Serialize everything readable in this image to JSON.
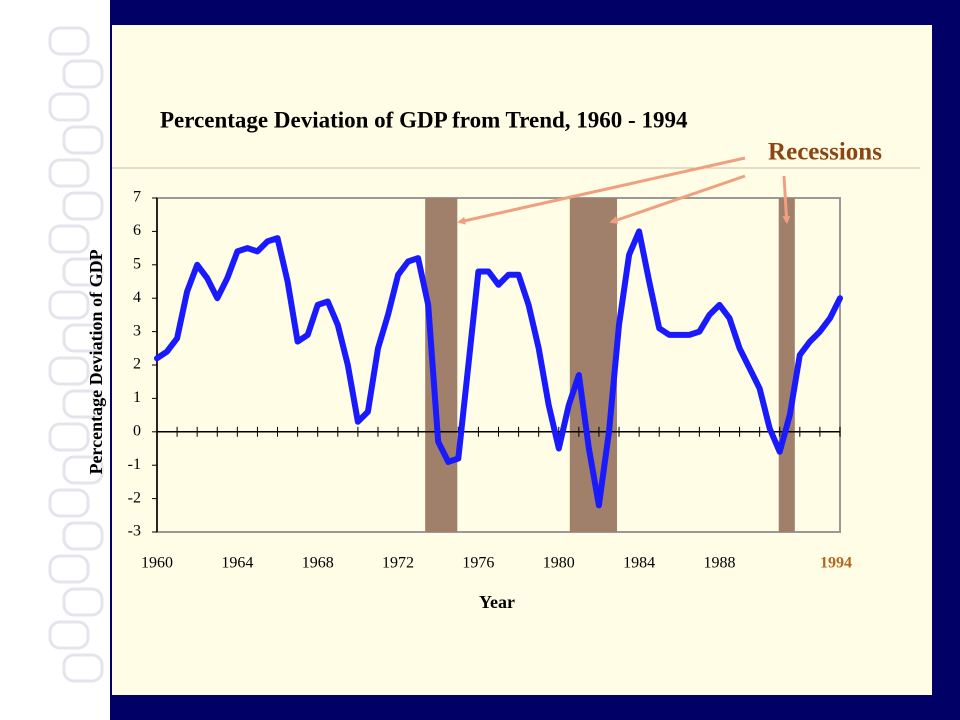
{
  "chart_data": {
    "type": "line",
    "title": "Percentage Deviation of GDP from Trend, 1960 - 1994",
    "x_label": "Year",
    "y_label": "Percentage Deviation of GDP",
    "annotation": "Recessions",
    "xlim": [
      1960,
      1994
    ],
    "ylim": [
      -3,
      7
    ],
    "xticks": [
      1960,
      1964,
      1968,
      1972,
      1976,
      1980,
      1984,
      1988,
      1994
    ],
    "yticks": [
      7,
      6,
      5,
      4,
      3,
      2,
      1,
      0,
      -1,
      -2,
      -3
    ],
    "emphasis_tick_color": "#b5651d",
    "recession_color": "#a0806a",
    "arrow_color": "#f0a080",
    "annotation_color": "#8b4513",
    "recessions": [
      [
        1973.35,
        1974.95
      ],
      [
        1980.55,
        1982.9
      ],
      [
        1990.95,
        1991.75
      ]
    ],
    "series": [
      {
        "name": "GDP deviation",
        "color": "#1a1aff",
        "x": [
          1960,
          1960.5,
          1961,
          1961.5,
          1962,
          1962.5,
          1963,
          1963.5,
          1964,
          1964.5,
          1965,
          1965.5,
          1966,
          1966.5,
          1967,
          1967.5,
          1968,
          1968.5,
          1969,
          1969.5,
          1970,
          1970.5,
          1971,
          1971.5,
          1972,
          1972.5,
          1973,
          1973.5,
          1974,
          1974.5,
          1975,
          1975.5,
          1976,
          1976.5,
          1977,
          1977.5,
          1978,
          1978.5,
          1979,
          1979.5,
          1980,
          1980.5,
          1981,
          1981.5,
          1982,
          1982.5,
          1983,
          1983.5,
          1984,
          1984.5,
          1985,
          1985.5,
          1986,
          1986.5,
          1987,
          1987.5,
          1988,
          1988.5,
          1989,
          1989.5,
          1990,
          1990.5,
          1991,
          1991.5,
          1992,
          1992.5,
          1993,
          1993.5,
          1994
        ],
        "values": [
          2.2,
          2.4,
          2.8,
          4.2,
          5.0,
          4.6,
          4.0,
          4.6,
          5.4,
          5.5,
          5.4,
          5.7,
          5.8,
          4.5,
          2.7,
          2.9,
          3.8,
          3.9,
          3.2,
          2.0,
          0.3,
          0.6,
          2.5,
          3.5,
          4.7,
          5.1,
          5.2,
          3.8,
          -0.3,
          -0.9,
          -0.8,
          2.0,
          4.8,
          4.8,
          4.4,
          4.7,
          4.7,
          3.8,
          2.5,
          0.8,
          -0.5,
          0.8,
          1.7,
          -0.5,
          -2.2,
          0.0,
          3.2,
          5.3,
          6.0,
          4.5,
          3.1,
          2.9,
          2.9,
          2.9,
          3.0,
          3.5,
          3.8,
          3.4,
          2.5,
          1.9,
          1.3,
          0.1,
          -0.6,
          0.5,
          2.3,
          2.7,
          3.0,
          3.4,
          4.0
        ]
      }
    ]
  }
}
